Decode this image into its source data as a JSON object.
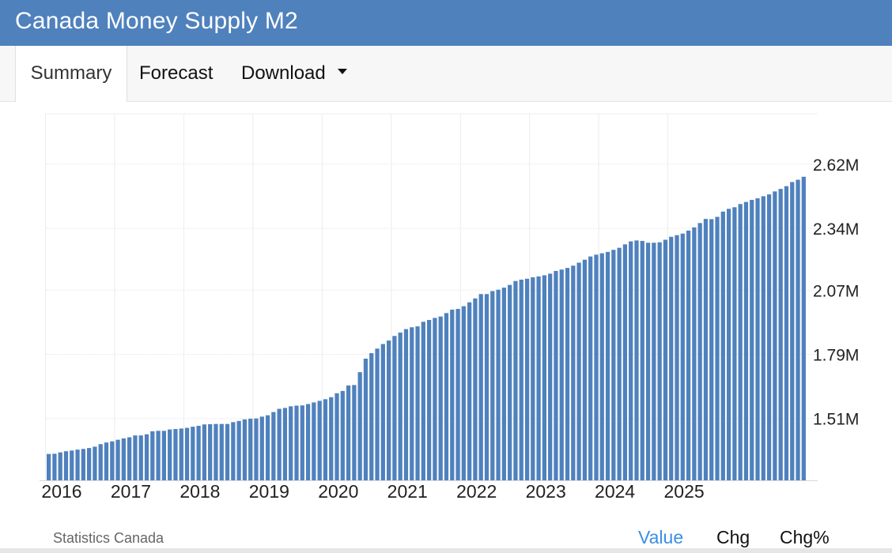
{
  "header": {
    "title": "Canada Money Supply M2"
  },
  "tabs": [
    {
      "label": "Summary"
    },
    {
      "label": "Forecast"
    },
    {
      "label": "Download"
    }
  ],
  "footer": {
    "source": "Statistics Canada",
    "buttons": [
      {
        "label": "Value"
      },
      {
        "label": "Chg"
      },
      {
        "label": "Chg%"
      }
    ]
  },
  "colors": {
    "bar": "#4f81bd",
    "header": "#4f81bd",
    "active_button": "#3a8ee6"
  },
  "chart_data": {
    "type": "bar",
    "title": "Canada Money Supply M2",
    "xlabel": "",
    "ylabel": "",
    "unit": "M",
    "ylim": [
      1.24,
      2.84
    ],
    "y_ticks": [
      {
        "value": 1.51,
        "label": "1.51M"
      },
      {
        "value": 1.79,
        "label": "1.79M"
      },
      {
        "value": 2.07,
        "label": "2.07M"
      },
      {
        "value": 2.34,
        "label": "2.34M"
      },
      {
        "value": 2.62,
        "label": "2.62M"
      }
    ],
    "x_tick_labels": [
      "2016",
      "2017",
      "2018",
      "2019",
      "2020",
      "2021",
      "2022",
      "2023",
      "2024",
      "2025"
    ],
    "start": "2016-01",
    "frequency": "monthly",
    "grid": true,
    "series": [
      {
        "name": "Canada Money Supply M2",
        "values": [
          1.355,
          1.356,
          1.362,
          1.367,
          1.37,
          1.374,
          1.377,
          1.381,
          1.387,
          1.398,
          1.405,
          1.41,
          1.417,
          1.423,
          1.428,
          1.436,
          1.436,
          1.441,
          1.454,
          1.456,
          1.456,
          1.462,
          1.464,
          1.466,
          1.469,
          1.474,
          1.478,
          1.484,
          1.485,
          1.486,
          1.486,
          1.486,
          1.494,
          1.499,
          1.506,
          1.509,
          1.51,
          1.518,
          1.524,
          1.538,
          1.552,
          1.556,
          1.563,
          1.566,
          1.567,
          1.573,
          1.58,
          1.587,
          1.594,
          1.603,
          1.62,
          1.63,
          1.654,
          1.656,
          1.712,
          1.771,
          1.795,
          1.815,
          1.835,
          1.85,
          1.87,
          1.885,
          1.9,
          1.908,
          1.912,
          1.932,
          1.94,
          1.949,
          1.955,
          1.97,
          1.985,
          1.988,
          2.0,
          2.017,
          2.034,
          2.053,
          2.053,
          2.066,
          2.072,
          2.081,
          2.093,
          2.11,
          2.116,
          2.12,
          2.126,
          2.13,
          2.135,
          2.142,
          2.154,
          2.16,
          2.167,
          2.177,
          2.19,
          2.203,
          2.217,
          2.225,
          2.231,
          2.237,
          2.246,
          2.255,
          2.27,
          2.283,
          2.287,
          2.285,
          2.277,
          2.277,
          2.279,
          2.29,
          2.303,
          2.31,
          2.317,
          2.33,
          2.344,
          2.363,
          2.381,
          2.38,
          2.39,
          2.413,
          2.425,
          2.432,
          2.446,
          2.455,
          2.464,
          2.471,
          2.48,
          2.488,
          2.501,
          2.512,
          2.524,
          2.542,
          2.552,
          2.565
        ]
      }
    ]
  }
}
